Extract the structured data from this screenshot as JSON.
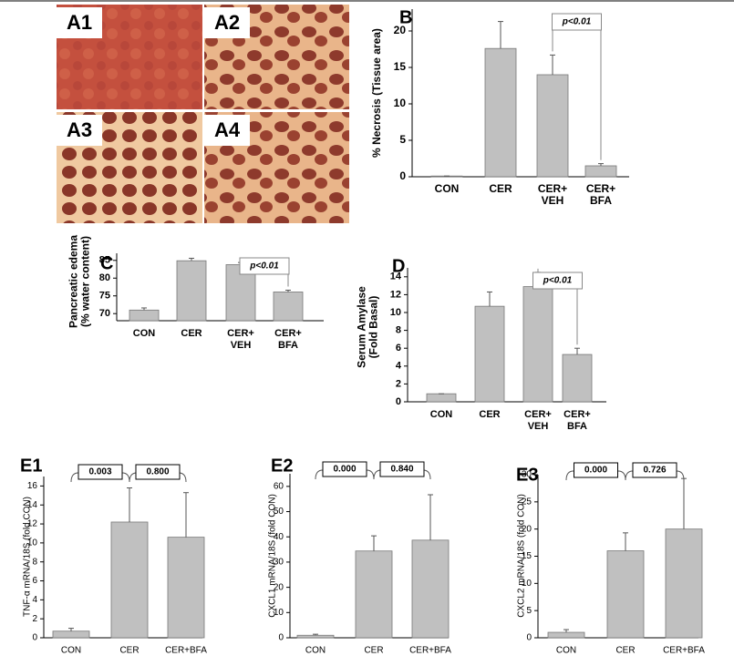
{
  "image_panels": [
    "A1",
    "A2",
    "A3",
    "A4"
  ],
  "chart_data": [
    {
      "type": "bar",
      "label": "B",
      "y_label": "% Necrosis (Tissue area)",
      "categories": [
        "CON",
        "CER",
        "CER+\nVEH",
        "CER+\nBFA"
      ],
      "values": [
        0.1,
        17.6,
        14.0,
        1.5
      ],
      "errors": [
        0,
        3.7,
        2.7,
        0.3
      ],
      "color": "#c0c0c0",
      "ylim": [
        0,
        23
      ],
      "yticks": [
        0,
        5,
        10,
        15,
        20
      ],
      "annotations": [
        "p<0.01"
      ]
    },
    {
      "type": "bar",
      "label": "C",
      "y_label": "Pancreatic edema\n(% water content)",
      "categories": [
        "CON",
        "CER",
        "CER+\nVEH",
        "CER+\nBFA"
      ],
      "values": [
        71.0,
        84.9,
        83.8,
        76.1
      ],
      "errors": [
        0.6,
        0.7,
        0.6,
        0.5
      ],
      "color": "#c0c0c0",
      "ylim": [
        68,
        87
      ],
      "yticks": [
        70,
        75,
        80,
        85
      ],
      "annotations": [
        "p<0.01"
      ]
    },
    {
      "type": "bar",
      "label": "D",
      "y_label": "Serum Amylase\n(Fold Basal)",
      "categories": [
        "CON",
        "CER",
        "CER+\nVEH",
        "CER+\nBFA"
      ],
      "values": [
        0.9,
        10.7,
        12.9,
        5.3
      ],
      "errors": [
        0,
        1.6,
        1.6,
        0.7
      ],
      "color": "#c0c0c0",
      "ylim": [
        0,
        15
      ],
      "yticks": [
        0,
        2,
        4,
        6,
        8,
        10,
        12,
        14
      ],
      "annotations": [
        "p<0.01"
      ]
    },
    {
      "type": "bar",
      "label": "E1",
      "y_label": "TNF-α mRNA/18S (fold CON)",
      "categories": [
        "CON",
        "CER",
        "CER+BFA"
      ],
      "values": [
        0.7,
        12.2,
        10.6
      ],
      "errors": [
        0.3,
        3.6,
        4.7
      ],
      "color": "#c0c0c0",
      "ylim": [
        0,
        17
      ],
      "yticks": [
        0,
        2,
        4,
        6,
        8,
        10,
        12,
        14,
        16
      ],
      "annotations": [
        "0.003",
        "0.800"
      ]
    },
    {
      "type": "bar",
      "label": "E2",
      "y_label": "CXCL1 mRNA/18S (fold CON)",
      "categories": [
        "CON",
        "CER",
        "CER+BFA"
      ],
      "values": [
        1.0,
        34.4,
        38.7
      ],
      "errors": [
        0.4,
        6.0,
        18.0
      ],
      "color": "#c0c0c0",
      "ylim": [
        0,
        65
      ],
      "yticks": [
        0,
        10,
        20,
        30,
        40,
        50,
        60
      ],
      "annotations": [
        "0.000",
        "0.840"
      ]
    },
    {
      "type": "bar",
      "label": "E3",
      "y_label": "CXCL2 mRNA/18S (fold CON)",
      "categories": [
        "CON",
        "CER",
        "CER+BFA"
      ],
      "values": [
        1.0,
        16.0,
        20.0
      ],
      "errors": [
        0.5,
        3.3,
        9.3
      ],
      "color": "#c0c0c0",
      "ylim": [
        0,
        30
      ],
      "yticks": [
        0,
        5,
        10,
        15,
        20,
        25,
        30
      ],
      "annotations": [
        "0.000",
        "0.726"
      ]
    }
  ]
}
